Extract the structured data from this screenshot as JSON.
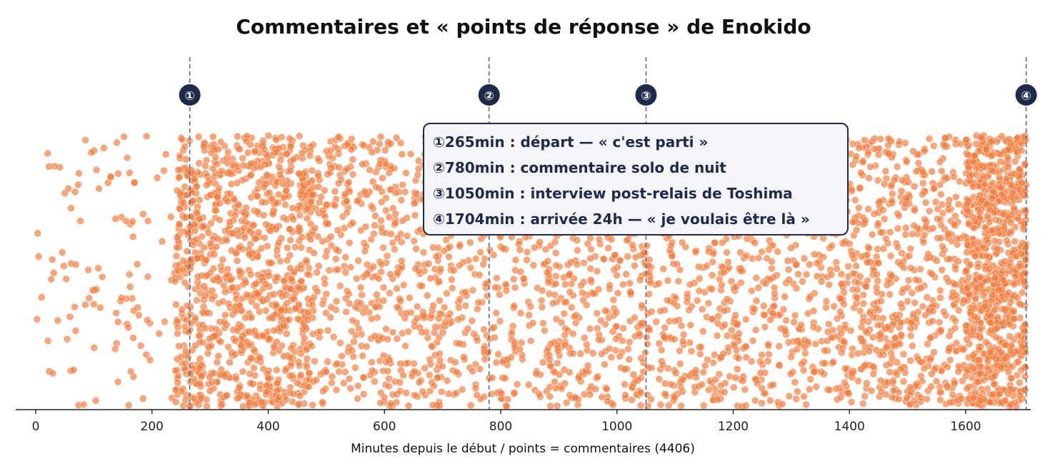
{
  "chart_data": {
    "type": "scatter",
    "title": "Commentaires et « points de réponse » de Enokido",
    "xlabel": "Minutes depuis le début / points = commentaires (4406)",
    "ylabel": "",
    "xlim": [
      -35,
      1712
    ],
    "ylim": [
      0,
      1
    ],
    "x_ticks": [
      0,
      200,
      400,
      600,
      800,
      1000,
      1200,
      1400,
      1600
    ],
    "y_axis_visible": false,
    "grid": false,
    "total_points": 4406,
    "point_color": "#f07c3c",
    "y_values_note": "vertical jitter only",
    "density_segments": [
      {
        "x_start": 0,
        "x_end": 240,
        "count": 110
      },
      {
        "x_start": 240,
        "x_end": 480,
        "count": 1000
      },
      {
        "x_start": 480,
        "x_end": 700,
        "count": 480
      },
      {
        "x_start": 700,
        "x_end": 880,
        "count": 320
      },
      {
        "x_start": 880,
        "x_end": 1050,
        "count": 380
      },
      {
        "x_start": 1050,
        "x_end": 1200,
        "count": 320
      },
      {
        "x_start": 1200,
        "x_end": 1400,
        "count": 420
      },
      {
        "x_start": 1400,
        "x_end": 1600,
        "count": 560
      },
      {
        "x_start": 1600,
        "x_end": 1704,
        "count": 816
      }
    ],
    "markers": [
      {
        "id": "①",
        "x": 265
      },
      {
        "id": "②",
        "x": 780
      },
      {
        "id": "③",
        "x": 1050
      },
      {
        "id": "④",
        "x": 1704
      }
    ],
    "marker_color": "#1e2a4a",
    "annotations": [
      "①265min : départ — « c'est parti »",
      "②780min : commentaire solo de nuit",
      "③1050min : interview post-relais de Toshima",
      "④1704min : arrivée 24h — « je voulais être là »"
    ]
  }
}
